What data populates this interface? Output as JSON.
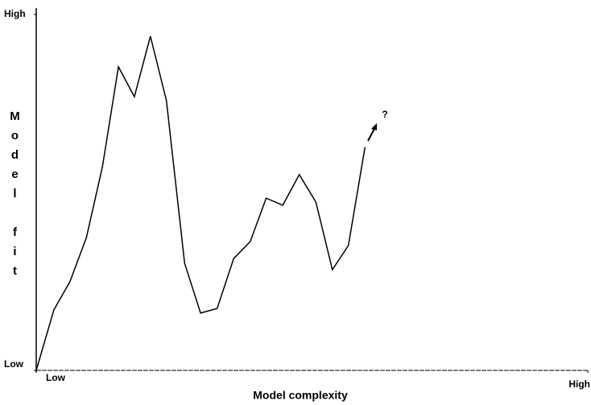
{
  "chart_data": {
    "type": "line",
    "x_label": "Model complexity",
    "y_label": "Model fit",
    "annotation": "?",
    "x": [
      0,
      3.2,
      6.1,
      9.1,
      12.0,
      14.9,
      17.8,
      20.7,
      23.6,
      26.9,
      29.8,
      32.8,
      35.8,
      38.8,
      41.7,
      44.7,
      47.7,
      50.7,
      53.7,
      56.6,
      59.6
    ],
    "values": [
      0,
      17.0,
      24.9,
      37.3,
      57.2,
      85.3,
      76.9,
      93.9,
      75.8,
      30.1,
      16.1,
      17.4,
      31.4,
      36.2,
      48.4,
      46.4,
      55.0,
      47.3,
      28.3,
      35.1,
      62.7
    ],
    "color": "#000000",
    "xlim": [
      0,
      100
    ],
    "ylim": [
      0,
      100
    ],
    "xticks": [
      {
        "value": 0,
        "label": "Low"
      },
      {
        "value": 100,
        "label": "High"
      }
    ],
    "yticks": [
      {
        "value": 0,
        "label": "Low"
      },
      {
        "value": 100,
        "label": "High"
      }
    ],
    "grid": false
  }
}
